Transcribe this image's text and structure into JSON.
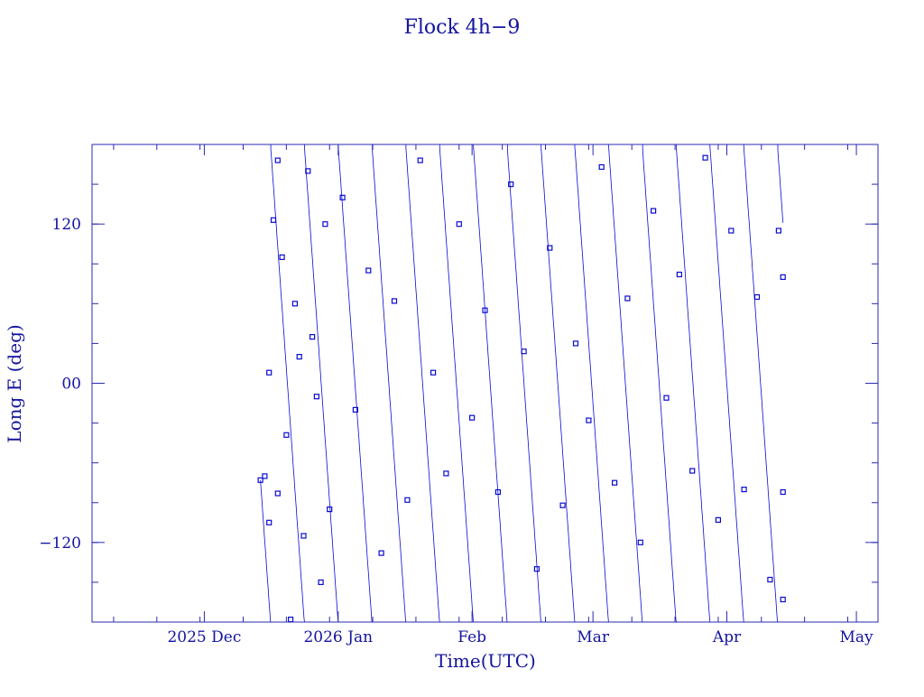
{
  "chart_data": {
    "type": "scatter",
    "title": "Flock 4h−9",
    "xlabel": "Time(UTC)",
    "ylabel": "Long E (deg)",
    "ylim": [
      -180,
      180
    ],
    "xlim": [
      "2025-11-05",
      "2026-05-06"
    ],
    "grid": false,
    "colors": {
      "line": "#0a0ad2",
      "text": "#1414a0",
      "frame": "#2a2ab4"
    },
    "x_ticks": [
      {
        "date": "2025-12-01",
        "label": "2025 Dec"
      },
      {
        "date": "2026-01-01",
        "label": "2026 Jan"
      },
      {
        "date": "2026-02-01",
        "label": "Feb"
      },
      {
        "date": "2026-03-01",
        "label": "Mar"
      },
      {
        "date": "2026-04-01",
        "label": "Apr"
      },
      {
        "date": "2026-05-01",
        "label": "May"
      }
    ],
    "y_ticks": [
      {
        "value": 120,
        "label": "120"
      },
      {
        "value": 0,
        "label": "00"
      },
      {
        "value": -120,
        "label": "−120"
      }
    ],
    "series": [
      {
        "style": "line+markers",
        "x_range": [
          "2025-12-14",
          "2026-04-14"
        ],
        "drift_deg_per_day": -46,
        "points": [
          {
            "x": "2025-12-14",
            "y": -73
          },
          {
            "x": "2025-12-15",
            "y": -70
          },
          {
            "x": "2025-12-16",
            "y": 8
          },
          {
            "x": "2025-12-16",
            "y": -105
          },
          {
            "x": "2025-12-17",
            "y": 123
          },
          {
            "x": "2025-12-18",
            "y": 168
          },
          {
            "x": "2025-12-18",
            "y": -83
          },
          {
            "x": "2025-12-19",
            "y": 95
          },
          {
            "x": "2025-12-20",
            "y": -39
          },
          {
            "x": "2025-12-21",
            "y": -178
          },
          {
            "x": "2025-12-22",
            "y": 60
          },
          {
            "x": "2025-12-23",
            "y": 20
          },
          {
            "x": "2025-12-24",
            "y": -115
          },
          {
            "x": "2025-12-25",
            "y": 160
          },
          {
            "x": "2025-12-26",
            "y": 35
          },
          {
            "x": "2025-12-27",
            "y": -10
          },
          {
            "x": "2025-12-28",
            "y": -150
          },
          {
            "x": "2025-12-29",
            "y": 120
          },
          {
            "x": "2025-12-30",
            "y": -95
          },
          {
            "x": "2026-01-02",
            "y": 140
          },
          {
            "x": "2026-01-05",
            "y": -20
          },
          {
            "x": "2026-01-08",
            "y": 85
          },
          {
            "x": "2026-01-11",
            "y": -128
          },
          {
            "x": "2026-01-14",
            "y": 62
          },
          {
            "x": "2026-01-17",
            "y": -88
          },
          {
            "x": "2026-01-20",
            "y": 168
          },
          {
            "x": "2026-01-23",
            "y": 8
          },
          {
            "x": "2026-01-26",
            "y": -68
          },
          {
            "x": "2026-01-29",
            "y": 120
          },
          {
            "x": "2026-02-01",
            "y": -26
          },
          {
            "x": "2026-02-04",
            "y": 55
          },
          {
            "x": "2026-02-07",
            "y": -82
          },
          {
            "x": "2026-02-10",
            "y": 150
          },
          {
            "x": "2026-02-13",
            "y": 24
          },
          {
            "x": "2026-02-16",
            "y": -140
          },
          {
            "x": "2026-02-19",
            "y": 102
          },
          {
            "x": "2026-02-22",
            "y": -92
          },
          {
            "x": "2026-02-25",
            "y": 30
          },
          {
            "x": "2026-02-28",
            "y": -28
          },
          {
            "x": "2026-03-03",
            "y": 163
          },
          {
            "x": "2026-03-06",
            "y": -75
          },
          {
            "x": "2026-03-09",
            "y": 64
          },
          {
            "x": "2026-03-12",
            "y": -120
          },
          {
            "x": "2026-03-15",
            "y": 130
          },
          {
            "x": "2026-03-18",
            "y": -11
          },
          {
            "x": "2026-03-21",
            "y": 82
          },
          {
            "x": "2026-03-24",
            "y": -66
          },
          {
            "x": "2026-03-27",
            "y": 170
          },
          {
            "x": "2026-03-30",
            "y": -103
          },
          {
            "x": "2026-04-02",
            "y": 115
          },
          {
            "x": "2026-04-05",
            "y": -80
          },
          {
            "x": "2026-04-08",
            "y": 65
          },
          {
            "x": "2026-04-11",
            "y": -148
          },
          {
            "x": "2026-04-13",
            "y": 115
          },
          {
            "x": "2026-04-14",
            "y": 80
          },
          {
            "x": "2026-04-14",
            "y": -82
          },
          {
            "x": "2026-04-14",
            "y": -163
          }
        ]
      }
    ]
  }
}
